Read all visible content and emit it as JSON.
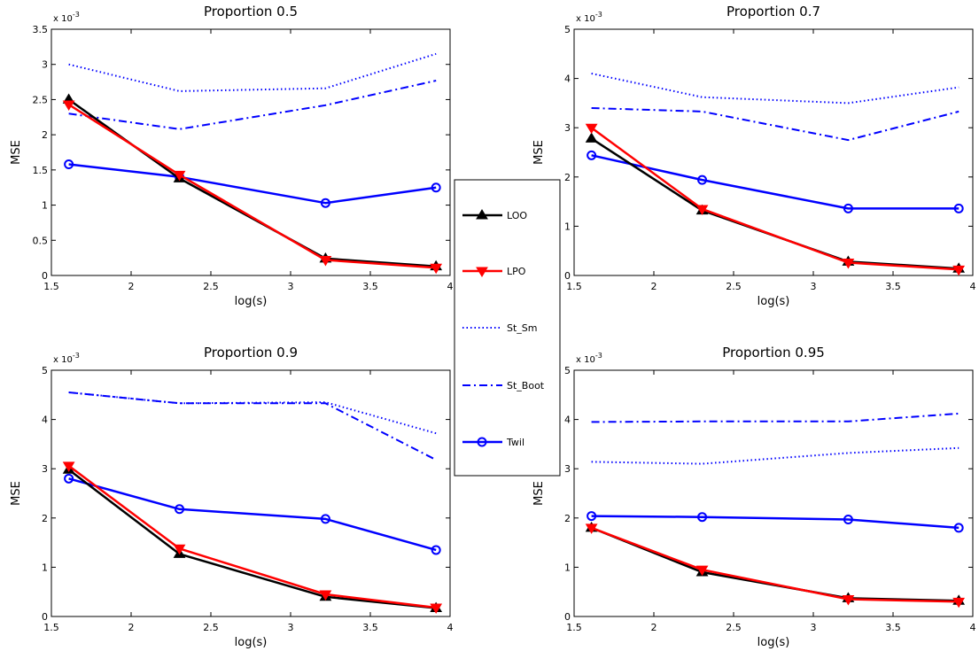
{
  "chart_data": [
    {
      "type": "line",
      "title": "Proportion 0.5",
      "xlabel": "log(s)",
      "ylabel": "MSE",
      "exponent_label": "x 10^-3",
      "xlim": [
        1.5,
        4
      ],
      "ylim": [
        0,
        3.5
      ],
      "xticks": [
        "1.5",
        "2",
        "2.5",
        "3",
        "3.5",
        "4"
      ],
      "yticks": [
        "0",
        "0.5",
        "1",
        "1.5",
        "2",
        "2.5",
        "3",
        "3.5"
      ],
      "x": [
        1.609,
        2.303,
        3.219,
        3.912
      ],
      "series": [
        {
          "name": "LOO",
          "values": [
            2.5,
            1.38,
            0.24,
            0.13
          ]
        },
        {
          "name": "LPO",
          "values": [
            2.43,
            1.43,
            0.22,
            0.11
          ]
        },
        {
          "name": "St_Sm",
          "values": [
            3.0,
            2.62,
            2.66,
            3.15
          ]
        },
        {
          "name": "St_Boot",
          "values": [
            2.3,
            2.08,
            2.42,
            2.77
          ]
        },
        {
          "name": "Twil",
          "values": [
            1.58,
            1.4,
            1.03,
            1.25
          ]
        }
      ]
    },
    {
      "type": "line",
      "title": "Proportion 0.7",
      "xlabel": "log(s)",
      "ylabel": "MSE",
      "exponent_label": "x 10^-3",
      "xlim": [
        1.5,
        4
      ],
      "ylim": [
        0,
        5
      ],
      "xticks": [
        "1.5",
        "2",
        "2.5",
        "3",
        "3.5",
        "4"
      ],
      "yticks": [
        "0",
        "1",
        "2",
        "3",
        "4",
        "5"
      ],
      "x": [
        1.609,
        2.303,
        3.219,
        3.912
      ],
      "series": [
        {
          "name": "LOO",
          "values": [
            2.78,
            1.32,
            0.28,
            0.14
          ]
        },
        {
          "name": "LPO",
          "values": [
            3.0,
            1.35,
            0.26,
            0.12
          ]
        },
        {
          "name": "St_Sm",
          "values": [
            4.1,
            3.62,
            3.5,
            3.82
          ]
        },
        {
          "name": "St_Boot",
          "values": [
            3.4,
            3.33,
            2.75,
            3.33
          ]
        },
        {
          "name": "Twil",
          "values": [
            2.44,
            1.94,
            1.36,
            1.36
          ]
        }
      ]
    },
    {
      "type": "line",
      "title": "Proportion 0.9",
      "xlabel": "log(s)",
      "ylabel": "MSE",
      "exponent_label": "x 10^-3",
      "xlim": [
        1.5,
        4
      ],
      "ylim": [
        0,
        5
      ],
      "xticks": [
        "1.5",
        "2",
        "2.5",
        "3",
        "3.5",
        "4"
      ],
      "yticks": [
        "0",
        "1",
        "2",
        "3",
        "4",
        "5"
      ],
      "x": [
        1.609,
        2.303,
        3.219,
        3.912
      ],
      "series": [
        {
          "name": "LOO",
          "values": [
            2.98,
            1.27,
            0.4,
            0.17
          ]
        },
        {
          "name": "LPO",
          "values": [
            3.06,
            1.38,
            0.45,
            0.18
          ]
        },
        {
          "name": "St_Sm",
          "values": [
            4.55,
            4.33,
            4.35,
            3.72
          ]
        },
        {
          "name": "St_Boot",
          "values": [
            4.55,
            4.33,
            4.33,
            3.18
          ]
        },
        {
          "name": "Twil",
          "values": [
            2.8,
            2.18,
            1.98,
            1.35
          ]
        }
      ]
    },
    {
      "type": "line",
      "title": "Proportion 0.95",
      "xlabel": "log(s)",
      "ylabel": "MSE",
      "exponent_label": "x 10^-3",
      "xlim": [
        1.5,
        4
      ],
      "ylim": [
        0,
        5
      ],
      "xticks": [
        "1.5",
        "2",
        "2.5",
        "3",
        "3.5",
        "4"
      ],
      "yticks": [
        "0",
        "1",
        "2",
        "3",
        "4",
        "5"
      ],
      "x": [
        1.609,
        2.303,
        3.219,
        3.912
      ],
      "series": [
        {
          "name": "LOO",
          "values": [
            1.8,
            0.9,
            0.37,
            0.32
          ]
        },
        {
          "name": "LPO",
          "values": [
            1.8,
            0.95,
            0.35,
            0.3
          ]
        },
        {
          "name": "St_Sm",
          "values": [
            3.14,
            3.1,
            3.32,
            3.42
          ]
        },
        {
          "name": "St_Boot",
          "values": [
            3.95,
            3.96,
            3.96,
            4.12
          ]
        },
        {
          "name": "Twil",
          "values": [
            2.04,
            2.02,
            1.97,
            1.8
          ]
        }
      ]
    }
  ],
  "legend": {
    "placement": "center",
    "entries": [
      {
        "name": "LOO",
        "color": "#000000",
        "style": "solid",
        "marker": "triangle-up"
      },
      {
        "name": "LPO",
        "color": "#ff0000",
        "style": "solid",
        "marker": "triangle-down"
      },
      {
        "name": "St_Sm",
        "color": "#0000ff",
        "style": "dotted",
        "marker": "none"
      },
      {
        "name": "St_Boot",
        "color": "#0000ff",
        "style": "dashdot",
        "marker": "none"
      },
      {
        "name": "Twil",
        "color": "#0000ff",
        "style": "solid",
        "marker": "circle"
      }
    ]
  }
}
